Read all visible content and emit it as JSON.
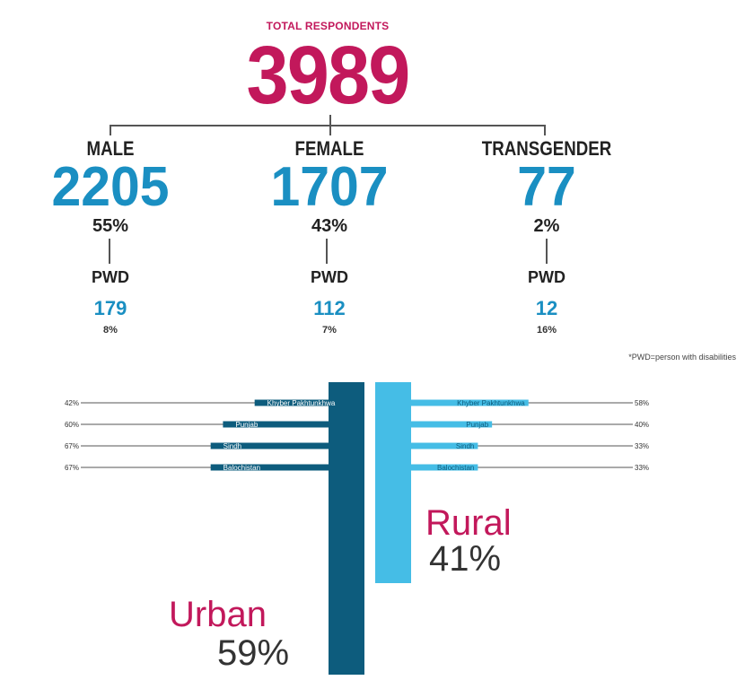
{
  "total": {
    "label": "TOTAL RESPONDENTS",
    "value": "3989"
  },
  "groups": [
    {
      "label": "MALE",
      "value": "2205",
      "pct": "55%",
      "pwd_label": "PWD",
      "pwd_value": "179",
      "pwd_pct": "8%"
    },
    {
      "label": "FEMALE",
      "value": "1707",
      "pct": "43%",
      "pwd_label": "PWD",
      "pwd_value": "112",
      "pwd_pct": "7%"
    },
    {
      "label": "TRANSGENDER",
      "value": "77",
      "pct": "2%",
      "pwd_label": "PWD",
      "pwd_value": "12",
      "pwd_pct": "16%"
    }
  ],
  "footnote": "*PWD=person with disabilities",
  "colors": {
    "pink": "#c2185b",
    "blue": "#1a8fc2",
    "urban": "#0d5c7d",
    "rural": "#45bde6",
    "text": "#333333"
  },
  "chart_data": {
    "type": "bar",
    "categories": [
      "Khyber Pakhtunkhwa",
      "Punjab",
      "Sindh",
      "Balochistan"
    ],
    "series": [
      {
        "name": "Urban",
        "total_label": "59%",
        "values": [
          42,
          60,
          67,
          67
        ],
        "labels": [
          "42%",
          "60%",
          "67%",
          "67%"
        ],
        "total": 59
      },
      {
        "name": "Rural",
        "total_label": "41%",
        "values": [
          58,
          40,
          33,
          33
        ],
        "labels": [
          "58%",
          "40%",
          "33%",
          "33%"
        ],
        "total": 41
      }
    ]
  }
}
